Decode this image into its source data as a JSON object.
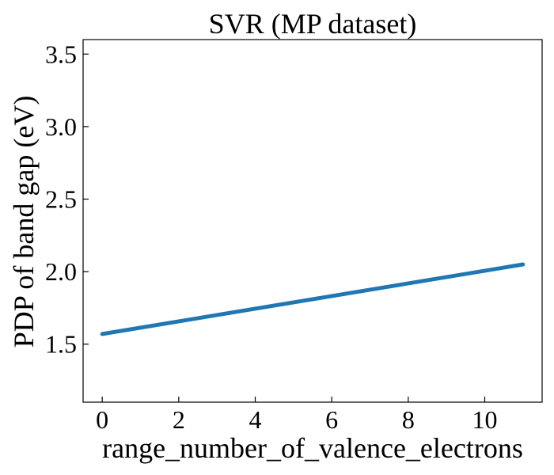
{
  "chart_data": {
    "type": "line",
    "title": "SVR (MP dataset)",
    "xlabel": "range_number_of_valence_electrons",
    "ylabel": "PDP of band gap (eV)",
    "xlim": [
      -0.5,
      11.5
    ],
    "ylim": [
      1.1,
      3.6
    ],
    "xticks": [
      0,
      2,
      4,
      6,
      8,
      10
    ],
    "xtick_labels": [
      "0",
      "2",
      "4",
      "6",
      "8",
      "10"
    ],
    "yticks": [
      1.5,
      2.0,
      2.5,
      3.0,
      3.5
    ],
    "ytick_labels": [
      "1.5",
      "2.0",
      "2.5",
      "3.0",
      "3.5"
    ],
    "grid": false,
    "series": [
      {
        "color": "#1f77b4",
        "x": [
          0,
          11
        ],
        "y": [
          1.57,
          2.05
        ]
      }
    ]
  }
}
